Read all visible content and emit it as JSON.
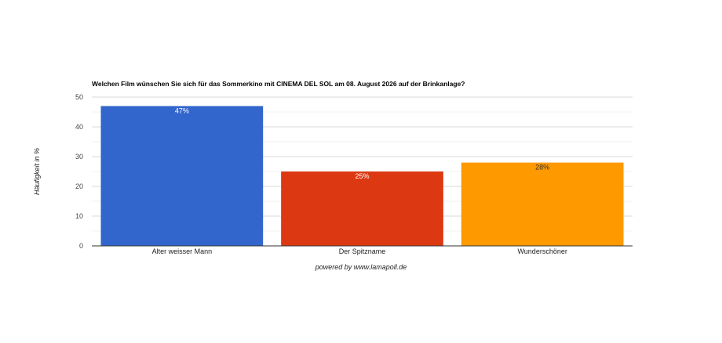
{
  "chart_data": {
    "type": "bar",
    "title": "Welchen Film wünschen Sie sich für das Sommerkino mit CINEMA DEL SOL am 08. August 2026 auf der Brinkanlage?",
    "ylabel": "Häufigkeit in %",
    "xlabel": "",
    "categories": [
      "Alter weisser Mann",
      "Der Spitzname",
      "Wunderschöner"
    ],
    "values": [
      47,
      25,
      28
    ],
    "data_labels": [
      "47%",
      "25%",
      "28%"
    ],
    "colors": [
      "#3366cc",
      "#dc3912",
      "#ff9900"
    ],
    "label_colors": [
      "#ffffff",
      "#ffffff",
      "#333333"
    ],
    "ylim": [
      0,
      50
    ],
    "yticks": [
      0,
      10,
      20,
      30,
      40,
      50
    ],
    "ytick_labels": [
      "0",
      "10",
      "20",
      "30",
      "40",
      "50"
    ],
    "grid": true,
    "legend": "none"
  },
  "footer": "powered by www.lamapoll.de"
}
